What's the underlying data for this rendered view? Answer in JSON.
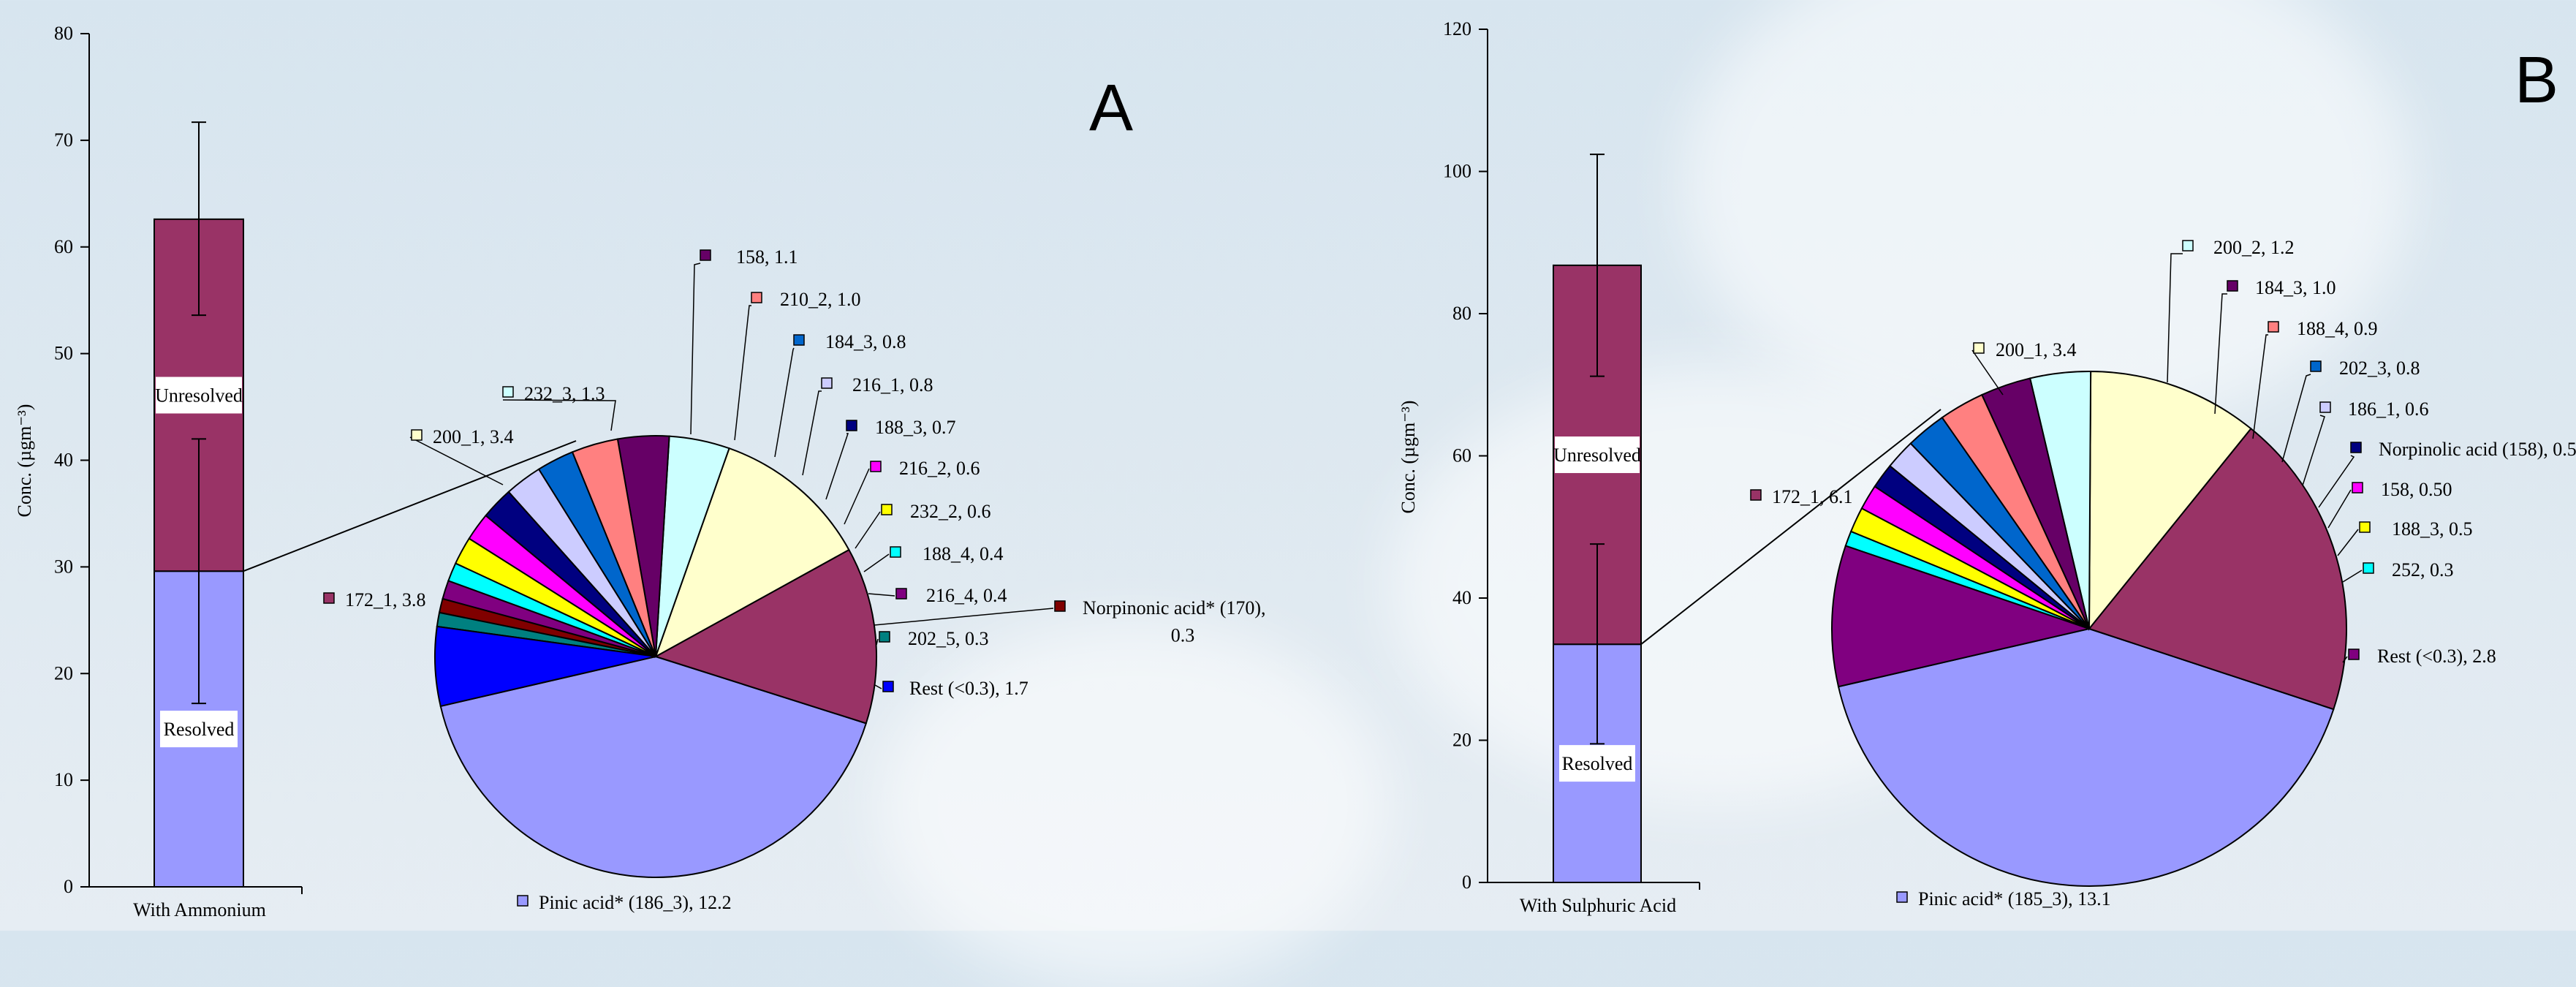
{
  "chart_data": [
    {
      "panel_label": "A",
      "type": "bar",
      "ylabel": "Conc. (µgm⁻³)",
      "ylim": [
        0,
        80
      ],
      "yticks": [
        0,
        10,
        20,
        30,
        40,
        50,
        60,
        70,
        80
      ],
      "categories": [
        "With Ammonium"
      ],
      "bar": {
        "resolved": 29.6,
        "total": 62.6,
        "resolved_label": "Resolved",
        "unresolved_label": "Unresolved",
        "resolved_error": [
          17.2,
          42.0
        ],
        "total_error": [
          53.6,
          71.7
        ]
      },
      "pie": {
        "type": "pie",
        "slices": [
          {
            "label": "Pinic acid* (186_3), 12.2",
            "value": 12.2,
            "color": "#9999ff"
          },
          {
            "label": "172_1, 3.8",
            "value": 3.8,
            "color": "#993366"
          },
          {
            "label": "200_1, 3.4",
            "value": 3.4,
            "color": "#ffffcc"
          },
          {
            "label": "232_3, 1.3",
            "value": 1.3,
            "color": "#ccffff"
          },
          {
            "label": "158, 1.1",
            "value": 1.1,
            "color": "#660066"
          },
          {
            "label": "210_2, 1.0",
            "value": 1.0,
            "color": "#ff8080"
          },
          {
            "label": "184_3, 0.8",
            "value": 0.8,
            "color": "#0066cc"
          },
          {
            "label": "216_1, 0.8",
            "value": 0.8,
            "color": "#ccccff"
          },
          {
            "label": "188_3, 0.7",
            "value": 0.7,
            "color": "#000080"
          },
          {
            "label": "216_2, 0.6",
            "value": 0.6,
            "color": "#ff00ff"
          },
          {
            "label": "232_2, 0.6",
            "value": 0.6,
            "color": "#ffff00"
          },
          {
            "label": "188_4, 0.4",
            "value": 0.4,
            "color": "#00ffff"
          },
          {
            "label": "216_4, 0.4",
            "value": 0.4,
            "color": "#800080"
          },
          {
            "label": "Norpinonic acid* (170),\n0.3",
            "value": 0.3,
            "color": "#800000"
          },
          {
            "label": "202_5, 0.3",
            "value": 0.3,
            "color": "#008080"
          },
          {
            "label": "Rest (<0.3), 1.7",
            "value": 1.7,
            "color": "#0000ff"
          }
        ]
      }
    },
    {
      "panel_label": "B",
      "type": "bar",
      "ylabel": "Conc. (µgm⁻³)",
      "ylim": [
        0,
        120
      ],
      "yticks": [
        0,
        20,
        40,
        60,
        80,
        100,
        120
      ],
      "categories": [
        "With Sulphuric Acid"
      ],
      "bar": {
        "resolved": 33.5,
        "total": 86.8,
        "resolved_label": "Resolved",
        "unresolved_label": "Unresolved",
        "resolved_error": [
          19.5,
          47.6
        ],
        "total_error": [
          71.2,
          102.4
        ]
      },
      "pie": {
        "type": "pie",
        "slices": [
          {
            "label": "Pinic acid* (185_3), 13.1",
            "value": 13.1,
            "color": "#9999ff"
          },
          {
            "label": "172_1, 6.1",
            "value": 6.1,
            "color": "#993366"
          },
          {
            "label": "200_1, 3.4",
            "value": 3.4,
            "color": "#ffffcc"
          },
          {
            "label": "200_2, 1.2",
            "value": 1.2,
            "color": "#ccffff"
          },
          {
            "label": "184_3, 1.0",
            "value": 1.0,
            "color": "#660066"
          },
          {
            "label": "188_4, 0.9",
            "value": 0.9,
            "color": "#ff8080"
          },
          {
            "label": "202_3, 0.8",
            "value": 0.8,
            "color": "#0066cc"
          },
          {
            "label": "186_1, 0.6",
            "value": 0.6,
            "color": "#ccccff"
          },
          {
            "label": "Norpinolic acid (158), 0.5",
            "value": 0.5,
            "color": "#000080"
          },
          {
            "label": "158, 0.50",
            "value": 0.5,
            "color": "#ff00ff"
          },
          {
            "label": "188_3, 0.5",
            "value": 0.5,
            "color": "#ffff00"
          },
          {
            "label": "252, 0.3",
            "value": 0.3,
            "color": "#00ffff"
          },
          {
            "label": "Rest (<0.3), 2.8",
            "value": 2.8,
            "color": "#800080"
          }
        ]
      }
    }
  ]
}
